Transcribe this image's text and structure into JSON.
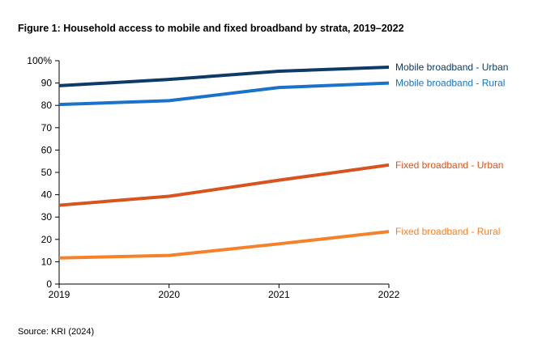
{
  "figure_title": "Figure 1: Household access to mobile and fixed broadband by strata, 2019–2022",
  "source": "Source: KRI (2024)",
  "chart_data": {
    "type": "line",
    "title": "Figure 1: Household access to mobile and fixed broadband by strata, 2019–2022",
    "xlabel": "",
    "ylabel": "",
    "x": [
      "2019",
      "2020",
      "2021",
      "2022"
    ],
    "ylim": [
      0,
      100
    ],
    "y_ticks": [
      "0",
      "10",
      "20",
      "30",
      "40",
      "50",
      "60",
      "70",
      "80",
      "90",
      "100%"
    ],
    "grid": false,
    "legend": "series labels at right end of lines",
    "series": [
      {
        "name": "Mobile broadband - Urban",
        "color": "#0d3b66",
        "values": [
          88.8,
          91.6,
          95.3,
          97.1
        ]
      },
      {
        "name": "Mobile broadband - Rural",
        "color": "#1a73c8",
        "values": [
          80.4,
          82.1,
          88.0,
          90.0
        ]
      },
      {
        "name": "Fixed broadband - Urban",
        "color": "#d9531e",
        "values": [
          35.3,
          39.3,
          46.5,
          53.3
        ]
      },
      {
        "name": "Fixed broadband - Rural",
        "color": "#f5822a",
        "values": [
          11.7,
          12.8,
          18.0,
          23.5
        ]
      }
    ]
  }
}
